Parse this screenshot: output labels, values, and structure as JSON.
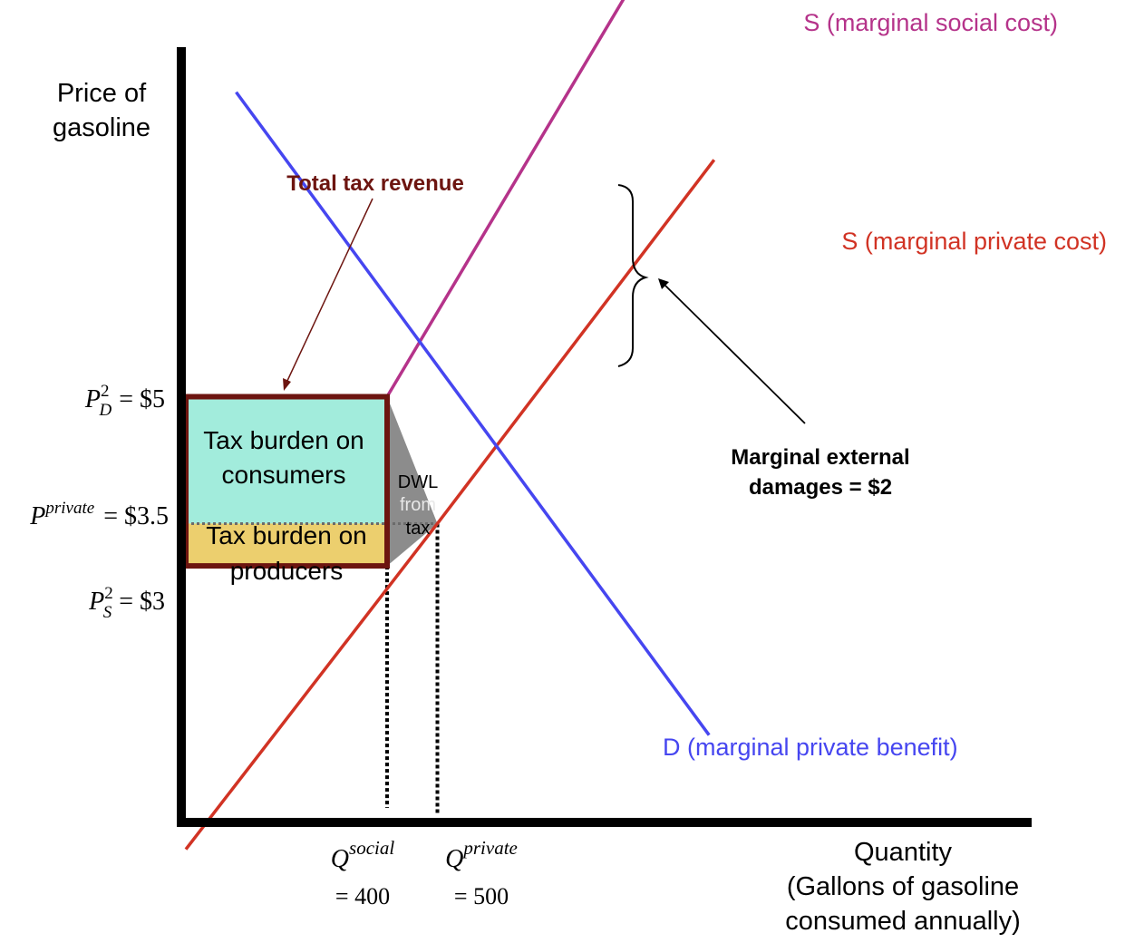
{
  "chart_data": {
    "type": "line",
    "y_axis_label": [
      "Price of",
      "gasoline"
    ],
    "x_axis_label": [
      "Quantity",
      "(Gallons of gasoline",
      "consumed annually)"
    ],
    "series": [
      {
        "name": "S (marginal social cost)",
        "color": "#b5338a",
        "points": [
          {
            "q": 400,
            "p": 5
          },
          {
            "q": 1370,
            "p": 14.7
          }
        ]
      },
      {
        "name": "S (marginal private cost)",
        "color": "#d13324",
        "points": [
          {
            "q": 0,
            "p": -0.35
          },
          {
            "q": 500,
            "p": 3.5
          },
          {
            "q": 1050,
            "p": 7.8
          }
        ]
      },
      {
        "name": "D (marginal private benefit)",
        "color": "#4646f0",
        "points": [
          {
            "q": 100,
            "p": 8.6
          },
          {
            "q": 1040,
            "p": 1.0
          }
        ]
      }
    ],
    "price_ticks": [
      {
        "key": "pd",
        "value": 5,
        "base": "P",
        "sup": "2",
        "sub": "D",
        "text": "= $5"
      },
      {
        "key": "pp",
        "value": 3.5,
        "base": "P",
        "sup": "private",
        "sub": "",
        "text": "= $3.5"
      },
      {
        "key": "ps",
        "value": 3,
        "base": "P",
        "sup": "2",
        "sub": "S",
        "text": "= $3"
      }
    ],
    "quantity_ticks": [
      {
        "key": "qs",
        "value": 400,
        "base": "Q",
        "sup": "social",
        "text": "= 400"
      },
      {
        "key": "qp",
        "value": 500,
        "base": "Q",
        "sup": "private",
        "text": "= 500"
      }
    ],
    "regions": {
      "consumer_burden": {
        "label": [
          "Tax burden on",
          "consumers"
        ],
        "color": "#a2ecdc",
        "q": [
          0,
          400
        ],
        "p": [
          3.5,
          5
        ]
      },
      "producer_burden": {
        "label": [
          "Tax burden on",
          "producers"
        ],
        "color": "#eccf6e",
        "q": [
          0,
          400
        ],
        "p": [
          3,
          3.5
        ]
      },
      "dwl": {
        "label": [
          "DWL",
          "from",
          "tax"
        ],
        "color": "#8c8c8c"
      },
      "tax_revenue_border_color": "#6d1510"
    },
    "annotations": {
      "total_tax_revenue": "Total tax revenue",
      "total_tax_revenue_color": "#6d1510",
      "marginal_external_damages": [
        "Marginal external",
        "damages = $2"
      ]
    }
  }
}
